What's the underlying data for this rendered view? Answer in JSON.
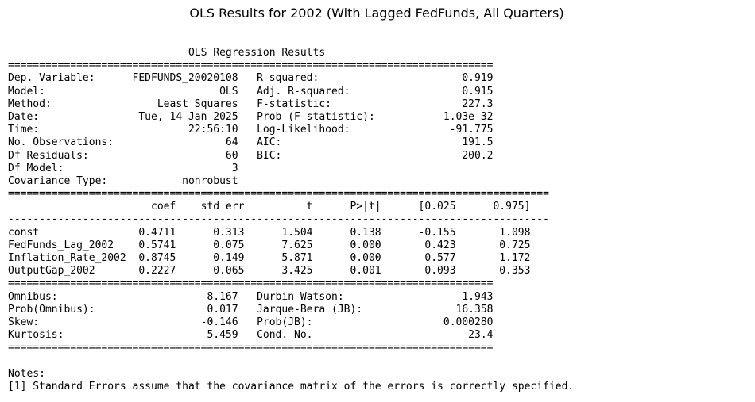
{
  "title": "OLS Results for 2002 (With Lagged FedFunds, All Quarters)",
  "summary_lines": [
    "                             OLS Regression Results                            ",
    "==============================================================================",
    "Dep. Variable:      FEDFUNDS_20020108   R-squared:                       0.919",
    "Model:                            OLS   Adj. R-squared:                  0.915",
    "Method:                 Least Squares   F-statistic:                     227.3",
    "Date:                Tue, 14 Jan 2025   Prob (F-statistic):           1.03e-32",
    "Time:                        22:56:10   Log-Likelihood:                -91.775",
    "No. Observations:                  64   AIC:                             191.5",
    "Df Residuals:                      60   BIC:                             200.2",
    "Df Model:                           3                                         ",
    "Covariance Type:            nonrobust                                         ",
    "=======================================================================================",
    "                       coef    std err          t      P>|t|      [0.025      0.975]",
    "---------------------------------------------------------------------------------------",
    "const                0.4711      0.313      1.504      0.138      -0.155       1.098",
    "FedFunds_Lag_2002    0.5741      0.075      7.625      0.000       0.423       0.725",
    "Inflation_Rate_2002  0.8745      0.149      5.871      0.000       0.577       1.172",
    "OutputGap_2002       0.2227      0.065      3.425      0.001       0.093       0.353",
    "==============================================================================",
    "Omnibus:                        8.167   Durbin-Watson:                   1.943",
    "Prob(Omnibus):                  0.017   Jarque-Bera (JB):               16.358",
    "Skew:                          -0.146   Prob(JB):                     0.000280",
    "Kurtosis:                       5.459   Cond. No.                         23.4",
    "==============================================================================",
    "",
    "Notes:",
    "[1] Standard Errors assume that the covariance matrix of the errors is correctly specified."
  ]
}
